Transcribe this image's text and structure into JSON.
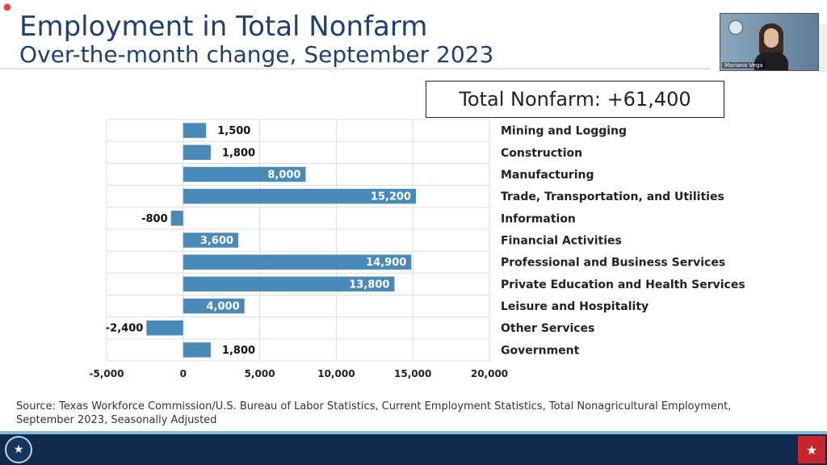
{
  "header": {
    "title": "Employment in Total Nonfarm",
    "subtitle": "Over-the-month change, September 2023"
  },
  "total_box": {
    "text": "Total Nonfarm: +61,400"
  },
  "video": {
    "participant_name": "Mariana Vega"
  },
  "source_text": "Source: Texas Workforce Commission/U.S. Bureau of Labor Statistics, Current Employment Statistics, Total Nonagricultural Employment, September 2023, Seasonally Adjusted",
  "footer": {
    "seal_glyph": "★",
    "texas_glyph": "★"
  },
  "colors": {
    "bar": "#4a8ab8",
    "title": "#1f3f6e",
    "footer": "#0f2a4a",
    "grid": "#dddddd"
  },
  "chart_data": {
    "type": "bar",
    "orientation": "horizontal",
    "categories": [
      "Mining and Logging",
      "Construction",
      "Manufacturing",
      "Trade, Transportation, and Utilities",
      "Information",
      "Financial Activities",
      "Professional and Business Services",
      "Private Education and Health Services",
      "Leisure and Hospitality",
      "Other Services",
      "Government"
    ],
    "values": [
      1500,
      1800,
      8000,
      15200,
      -800,
      3600,
      14900,
      13800,
      4000,
      -2400,
      1800
    ],
    "value_labels": [
      "1,500",
      "1,800",
      "8,000",
      "15,200",
      "-800",
      "3,600",
      "14,900",
      "13,800",
      "4,000",
      "-2,400",
      "1,800"
    ],
    "xlim": [
      -5000,
      20000
    ],
    "xticks": [
      -5000,
      0,
      5000,
      10000,
      15000,
      20000
    ],
    "xtick_labels": [
      "-5,000",
      "0",
      "5,000",
      "10,000",
      "15,000",
      "20,000"
    ],
    "grid": true,
    "legend": "none"
  }
}
